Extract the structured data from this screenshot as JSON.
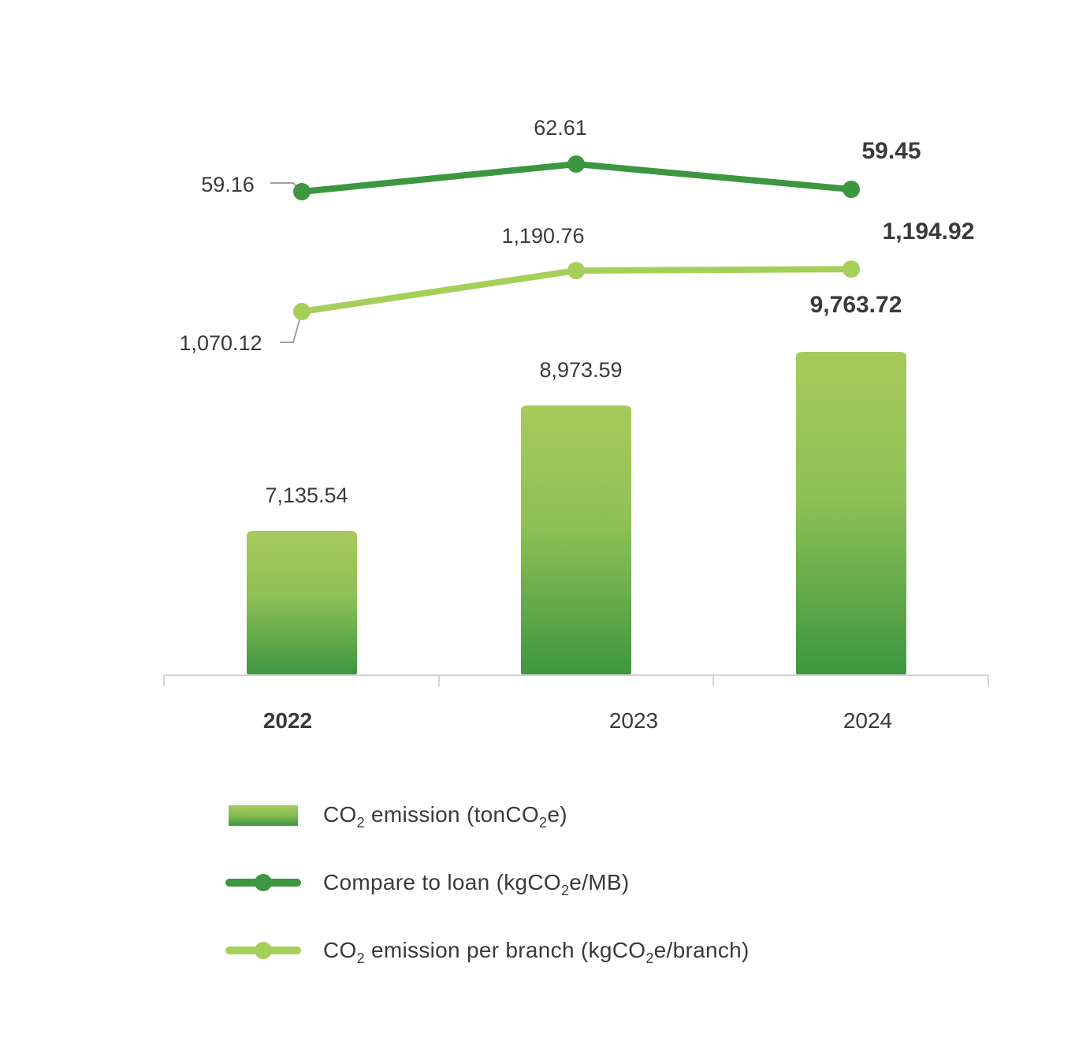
{
  "colors": {
    "dark_green": "#3d9640",
    "light_green": "#a6cf5a",
    "bar_top": "#a6ca5b",
    "bar_bottom": "#3d9640",
    "axis": "#d4d4d4",
    "leader": "#a0a0a0",
    "text": "#3a3a3a"
  },
  "chart_data": {
    "type": "bar",
    "categories": [
      "2022",
      "2023",
      "2024"
    ],
    "series": [
      {
        "name": "CO2 emission (tonCO2e)",
        "type": "bar",
        "values": [
          7135.54,
          8973.59,
          9763.72
        ],
        "labels": [
          "7,135.54",
          "8,973.59",
          "9,763.72"
        ]
      },
      {
        "name": "Compare to loan (kgCO2e/MB)",
        "type": "line",
        "values": [
          59.16,
          62.61,
          59.45
        ],
        "labels": [
          "59.16",
          "62.61",
          "59.45"
        ]
      },
      {
        "name": "CO2 emission per branch (kgCO2e/branch)",
        "type": "line",
        "values": [
          1070.12,
          1190.76,
          1194.92
        ],
        "labels": [
          "1,070.12",
          "1,190.76",
          "1,194.92"
        ]
      }
    ],
    "bold_category": "2022",
    "bold_value_index": 2,
    "legend_position": "bottom",
    "grid": false
  },
  "legend": {
    "items": [
      {
        "prefix": "CO",
        "sub1": "2",
        "middle": " emission (tonCO",
        "sub2": "2",
        "suffix": "e)"
      },
      {
        "prefix": "Compare to loan (kgCO",
        "sub1": "2",
        "middle": "e/MB)",
        "sub2": "",
        "suffix": ""
      },
      {
        "prefix": "CO",
        "sub1": "2",
        "middle": " emission per branch (kgCO",
        "sub2": "2",
        "suffix": "e/branch)"
      }
    ]
  }
}
